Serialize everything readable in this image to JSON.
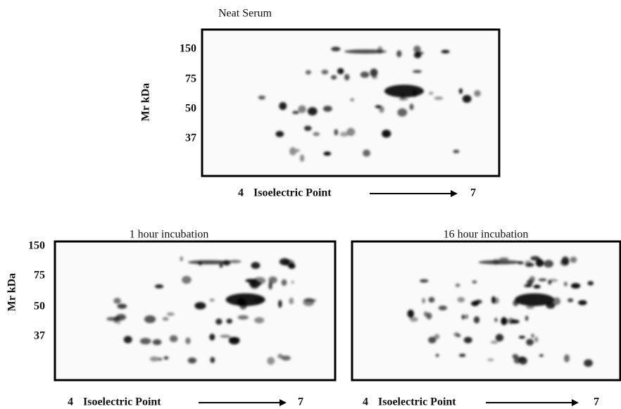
{
  "panels": [
    {
      "title": "Neat Serum",
      "y_label": "Mr kDa",
      "y_ticks": [
        "150",
        "75",
        "50",
        "37"
      ],
      "x_start": "4",
      "x_label": "Isoelectric Point",
      "x_end": "7"
    },
    {
      "title": "1 hour incubation",
      "y_label": "Mr kDa",
      "y_ticks": [
        "150",
        "75",
        "50",
        "37"
      ],
      "x_start": "4",
      "x_label": "Isoelectric Point",
      "x_end": "7"
    },
    {
      "title": "16 hour incubation",
      "x_start": "4",
      "x_label": "Isoelectric Point",
      "x_end": "7"
    }
  ]
}
